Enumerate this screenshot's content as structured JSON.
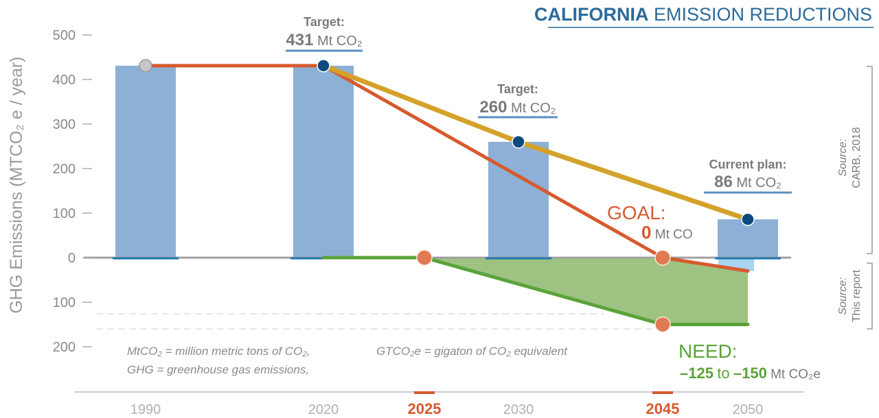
{
  "title": {
    "bold": "CALIFORNIA",
    "rest": "EMISSION REDUCTIONS"
  },
  "colors": {
    "bar": "#8db0d6",
    "bar_base": "#1f78b4",
    "goal": "#d65a2e",
    "plan": "#d4a22a",
    "need": "#5aa33a",
    "need_fill": "#9dc281",
    "navy": "#0d4a80",
    "orange_point": "#e07a52",
    "grey": "#8a8a8a",
    "title_blue": "#2a6a9a"
  },
  "chart_data": {
    "type": "bar",
    "ylabel": "GHG Emissions (MTCO₂ e / year)",
    "ylim": [
      -200,
      500
    ],
    "y_ticks": [
      {
        "value": 500,
        "label": "500"
      },
      {
        "value": 400,
        "label": "400"
      },
      {
        "value": 300,
        "label": "300"
      },
      {
        "value": 200,
        "label": "200"
      },
      {
        "value": 100,
        "label": "100"
      },
      {
        "value": 0,
        "label": "0"
      },
      {
        "value": -100,
        "label": "100"
      },
      {
        "value": -200,
        "label": "200"
      }
    ],
    "x_ticks": [
      {
        "year": 1990,
        "label": "1990",
        "highlight": false
      },
      {
        "year": 2020,
        "label": "2020",
        "highlight": false
      },
      {
        "year": 2025,
        "label": "2025",
        "highlight": true
      },
      {
        "year": 2030,
        "label": "2030",
        "highlight": false
      },
      {
        "year": 2045,
        "label": "2045",
        "highlight": true
      },
      {
        "year": 2050,
        "label": "2050",
        "highlight": false
      }
    ],
    "bars": [
      {
        "year": 1990,
        "value": 431
      },
      {
        "year": 2020,
        "value": 431
      },
      {
        "year": 2030,
        "value": 260
      },
      {
        "year": 2050,
        "value": 86
      }
    ],
    "series": [
      {
        "key": "goal",
        "points": [
          [
            1990,
            431
          ],
          [
            2020,
            431
          ],
          [
            2045,
            0
          ],
          [
            2050,
            -30
          ]
        ]
      },
      {
        "key": "plan",
        "points": [
          [
            2020,
            431
          ],
          [
            2030,
            260
          ],
          [
            2050,
            86
          ]
        ]
      },
      {
        "key": "need",
        "points": [
          [
            2020,
            0
          ],
          [
            2025,
            0
          ],
          [
            2045,
            -150
          ],
          [
            2050,
            -150
          ]
        ]
      }
    ],
    "markers": [
      {
        "year": 1990,
        "value": 431,
        "kind": "grey"
      },
      {
        "year": 2020,
        "value": 431,
        "kind": "navy"
      },
      {
        "year": 2030,
        "value": 260,
        "kind": "navy"
      },
      {
        "year": 2050,
        "value": 86,
        "kind": "navy"
      },
      {
        "year": 2025,
        "value": 0,
        "kind": "orange"
      },
      {
        "year": 2045,
        "value": 0,
        "kind": "orange"
      },
      {
        "year": 2045,
        "value": -150,
        "kind": "orange"
      }
    ],
    "annotations": {
      "t2020": {
        "label": "Target:",
        "value": "431",
        "unit": "Mt CO₂"
      },
      "t2030": {
        "label": "Target:",
        "value": "260",
        "unit": "Mt CO₂"
      },
      "t2050": {
        "label": "Current plan:",
        "value": "86",
        "unit": "Mt CO₂"
      },
      "goal": {
        "label": "GOAL:",
        "value": "0",
        "unit": "Mt CO"
      },
      "need": {
        "label": "NEED:",
        "from": "–125",
        "to_word": "to",
        "to": "–150",
        "unit": "Mt CO₂e"
      }
    },
    "sources": [
      {
        "label": "Source:",
        "text": "CARB, 2018"
      },
      {
        "label": "Source:",
        "text": "This report"
      }
    ],
    "footnotes": [
      "MtCO₂ = million metric tons of CO₂,",
      "GHG = greenhouse gas emissions,",
      "GTCO₂e = gigaton of CO₂ equivalent"
    ]
  }
}
